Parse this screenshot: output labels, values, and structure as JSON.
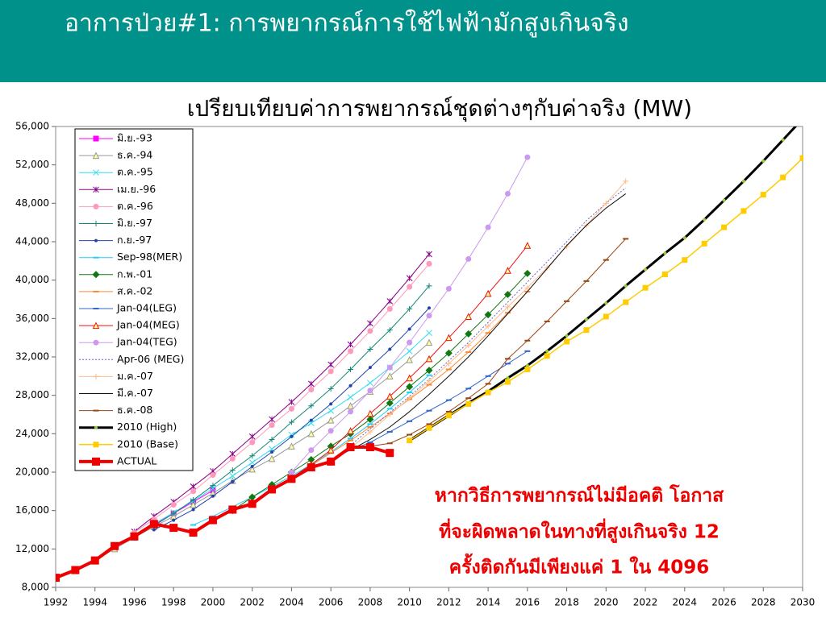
{
  "header": {
    "title": "อาการป่วย#1: การพยากรณ์การใช้ไฟฟ้ามักสูงเกินจริง"
  },
  "annotation": [
    "หากวิธีการพยากรณ์ไม่มีอคติ โอกาส",
    "ที่จะผิดพลาดในทางที่สูงเกินจริง 12",
    "ครั้งติดกันมีเพียงแค่ 1 ใน 4096"
  ],
  "chart_data": {
    "type": "line",
    "title": "เปรียบเทียบค่าการพยากรณ์ชุดต่างๆกับค่าจริง (MW)",
    "xlim": [
      1992,
      2030
    ],
    "xticks": [
      1992,
      1994,
      1996,
      1998,
      2000,
      2002,
      2004,
      2006,
      2008,
      2010,
      2012,
      2014,
      2016,
      2018,
      2020,
      2022,
      2024,
      2026,
      2028,
      2030
    ],
    "ylim": [
      8000,
      56000
    ],
    "yticks": [
      {
        "value": 8000,
        "label": "8,000"
      },
      {
        "value": 12000,
        "label": "12,000"
      },
      {
        "value": 16000,
        "label": "16,000"
      },
      {
        "value": 20000,
        "label": "20,000"
      },
      {
        "value": 24000,
        "label": "24,000"
      },
      {
        "value": 28000,
        "label": "28,000"
      },
      {
        "value": 32000,
        "label": "32,000"
      },
      {
        "value": 36000,
        "label": "36,000"
      },
      {
        "value": 40000,
        "label": "40,000"
      },
      {
        "value": 44000,
        "label": "44,000"
      },
      {
        "value": 48000,
        "label": "48,000"
      },
      {
        "value": 52000,
        "label": "52,000"
      },
      {
        "value": 56000,
        "label": "56,000"
      }
    ],
    "legend": "upper left",
    "series": [
      {
        "name": "มิ.ย.-93",
        "color": "#ff00ff",
        "marker": "square",
        "line_width": 1,
        "x": [
          1993,
          1994,
          1995,
          1996,
          1997,
          1998,
          1999,
          2000
        ],
        "values": [
          9900,
          10900,
          12100,
          13300,
          14500,
          15700,
          16900,
          18100
        ]
      },
      {
        "name": "ธ.ค.-94",
        "color": "#999999",
        "marker": "triangle",
        "line_width": 1,
        "x": [
          1994,
          1995,
          1996,
          1997,
          1998,
          1999,
          2000,
          2001,
          2002,
          2003,
          2004,
          2005,
          2006,
          2007,
          2008,
          2009,
          2010,
          2011
        ],
        "values": [
          10800,
          12000,
          13200,
          14300,
          15400,
          16600,
          17800,
          19100,
          20300,
          21400,
          22700,
          24000,
          25400,
          26900,
          28400,
          30000,
          31700,
          33500
        ]
      },
      {
        "name": "ต.ค.-95",
        "color": "#33ddee",
        "marker": "x",
        "line_width": 1,
        "x": [
          1995,
          1996,
          1997,
          1998,
          1999,
          2000,
          2001,
          2002,
          2003,
          2004,
          2005,
          2006,
          2007,
          2008,
          2009,
          2010,
          2011
        ],
        "values": [
          12200,
          13400,
          14600,
          15800,
          17000,
          18300,
          19600,
          21000,
          22400,
          23900,
          25100,
          26400,
          27800,
          29300,
          30900,
          32600,
          34500
        ]
      },
      {
        "name": "เม.ย.-96",
        "color": "#880088",
        "marker": "star",
        "line_width": 1,
        "x": [
          1996,
          1997,
          1998,
          1999,
          2000,
          2001,
          2002,
          2003,
          2004,
          2005,
          2006,
          2007,
          2008,
          2009,
          2010,
          2011
        ],
        "values": [
          13800,
          15400,
          16900,
          18500,
          20100,
          21900,
          23700,
          25500,
          27300,
          29200,
          31200,
          33300,
          35500,
          37800,
          40200,
          42700
        ]
      },
      {
        "name": "ต.ค.-96",
        "color": "#ff99bb",
        "marker": "circle",
        "line_width": 1,
        "x": [
          1996,
          1997,
          1998,
          1999,
          2000,
          2001,
          2002,
          2003,
          2004,
          2005,
          2006,
          2007,
          2008,
          2009,
          2010,
          2011
        ],
        "values": [
          13700,
          15100,
          16600,
          18000,
          19700,
          21400,
          23100,
          24900,
          26600,
          28600,
          30500,
          32600,
          34700,
          37000,
          39300,
          41700
        ]
      },
      {
        "name": "มิ.ย.-97",
        "color": "#118877",
        "marker": "plus",
        "line_width": 1,
        "x": [
          1997,
          1998,
          1999,
          2000,
          2001,
          2002,
          2003,
          2004,
          2005,
          2006,
          2007,
          2008,
          2009,
          2010,
          2011
        ],
        "values": [
          14400,
          15700,
          17100,
          18600,
          20200,
          21700,
          23400,
          25200,
          26900,
          28700,
          30700,
          32800,
          34800,
          37000,
          39400
        ]
      },
      {
        "name": "ก.ย.-97",
        "color": "#2244aa",
        "marker": "dot",
        "line_width": 1,
        "x": [
          1997,
          1998,
          1999,
          2000,
          2001,
          2002,
          2003,
          2004,
          2005,
          2006,
          2007,
          2008,
          2009,
          2010,
          2011
        ],
        "values": [
          14000,
          15000,
          16100,
          17500,
          19000,
          20600,
          22100,
          23700,
          25400,
          27100,
          29000,
          30900,
          32800,
          34900,
          37100
        ]
      },
      {
        "name": "Sep-98(MER)",
        "color": "#22ccff",
        "marker": "dash",
        "line_width": 1,
        "x": [
          1999,
          2000,
          2001,
          2002,
          2003,
          2004,
          2005,
          2006,
          2007,
          2008,
          2009,
          2010,
          2011
        ],
        "values": [
          14500,
          15400,
          16400,
          17400,
          18500,
          19600,
          20800,
          22100,
          23500,
          25000,
          26600,
          28300,
          30100
        ]
      },
      {
        "name": "ก.พ.-01",
        "color": "#117711",
        "marker": "diamond",
        "line_width": 1,
        "x": [
          2001,
          2002,
          2003,
          2004,
          2005,
          2006,
          2007,
          2008,
          2009,
          2010,
          2011,
          2012,
          2013,
          2014,
          2015,
          2016
        ],
        "values": [
          16000,
          17400,
          18700,
          20000,
          21300,
          22700,
          24000,
          25500,
          27200,
          28900,
          30600,
          32400,
          34400,
          36400,
          38500,
          40700
        ]
      },
      {
        "name": "ส.ค.-02",
        "color": "#ff8833",
        "marker": "dash",
        "line_width": 1,
        "x": [
          2002,
          2003,
          2004,
          2005,
          2006,
          2007,
          2008,
          2009,
          2010,
          2011,
          2012,
          2013,
          2014,
          2015,
          2016
        ],
        "values": [
          16800,
          18100,
          19400,
          20700,
          22000,
          23300,
          24700,
          26100,
          27600,
          29100,
          30700,
          32500,
          34500,
          36600,
          38800
        ]
      },
      {
        "name": "Jan-04(LEG)",
        "color": "#3366cc",
        "marker": "dash",
        "line_width": 1,
        "x": [
          2004,
          2005,
          2006,
          2007,
          2008,
          2009,
          2010,
          2011,
          2012,
          2013,
          2014,
          2015,
          2016
        ],
        "values": [
          19300,
          20300,
          21300,
          22300,
          23100,
          24200,
          25300,
          26400,
          27500,
          28700,
          30000,
          31300,
          32600
        ]
      },
      {
        "name": "Jan-04(MEG)",
        "color": "#ee1111",
        "marker": "triangle",
        "line_width": 1,
        "x": [
          2004,
          2005,
          2006,
          2007,
          2008,
          2009,
          2010,
          2011,
          2012,
          2013,
          2014,
          2015,
          2016
        ],
        "values": [
          19400,
          20800,
          22300,
          24300,
          26100,
          27900,
          29800,
          31800,
          34000,
          36200,
          38600,
          41000,
          43600
        ]
      },
      {
        "name": "Jan-04(TEG)",
        "color": "#cc99ee",
        "marker": "circle",
        "line_width": 1,
        "x": [
          2004,
          2005,
          2006,
          2007,
          2008,
          2009,
          2010,
          2011,
          2012,
          2013,
          2014,
          2015,
          2016
        ],
        "values": [
          20000,
          22300,
          24300,
          26300,
          28500,
          30900,
          33500,
          36300,
          39100,
          42200,
          45500,
          49000,
          52800
        ]
      },
      {
        "name": "Apr-06 (MEG)",
        "color": "#6666cc",
        "marker": "none",
        "line_style": "dotted",
        "line_width": 1,
        "x": [
          2006,
          2007,
          2008,
          2009,
          2010,
          2011,
          2012,
          2013,
          2014,
          2015,
          2016,
          2017,
          2018,
          2019,
          2020,
          2021
        ],
        "values": [
          21000,
          22800,
          24500,
          26200,
          27900,
          29700,
          31600,
          33500,
          35600,
          37700,
          39800,
          41900,
          44000,
          46200,
          48000,
          49600
        ]
      },
      {
        "name": "ม.ค.-07",
        "color": "#ffbb88",
        "marker": "plus",
        "line_width": 1,
        "x": [
          2007,
          2008,
          2009,
          2010,
          2011,
          2012,
          2013,
          2014,
          2015,
          2016,
          2017,
          2018,
          2019,
          2020,
          2021
        ],
        "values": [
          22500,
          24200,
          26000,
          27700,
          29500,
          31300,
          33200,
          35200,
          37200,
          39200,
          41300,
          43500,
          45700,
          48000,
          50300
        ]
      },
      {
        "name": "มี.ค.-07",
        "color": "#111111",
        "marker": "none",
        "line_width": 1,
        "x": [
          2007,
          2008,
          2009,
          2010,
          2011,
          2012,
          2013,
          2014,
          2015,
          2016,
          2017,
          2018,
          2019,
          2020,
          2021
        ],
        "values": [
          22300,
          23400,
          24700,
          26300,
          28100,
          30000,
          32000,
          34200,
          36500,
          38800,
          41200,
          43600,
          45700,
          47500,
          49000
        ]
      },
      {
        "name": "ธ.ค.-08",
        "color": "#994411",
        "marker": "dash",
        "line_width": 1,
        "x": [
          2008,
          2009,
          2010,
          2011,
          2012,
          2013,
          2014,
          2015,
          2016,
          2017,
          2018,
          2019,
          2020,
          2021
        ],
        "values": [
          22700,
          23000,
          23900,
          25000,
          26300,
          27700,
          29200,
          31800,
          33700,
          35700,
          37800,
          39900,
          42100,
          44300
        ]
      },
      {
        "name": "2010 (High)",
        "color": "#000000",
        "marker_color": "#99cc33",
        "marker": "dot",
        "line_width": 3,
        "x": [
          2010,
          2011,
          2012,
          2013,
          2014,
          2015,
          2016,
          2017,
          2018,
          2019,
          2020,
          2021,
          2022,
          2023,
          2024,
          2025,
          2026,
          2027,
          2028,
          2029,
          2030
        ],
        "values": [
          23300,
          24600,
          25900,
          27200,
          28400,
          29800,
          31100,
          32600,
          34200,
          35900,
          37600,
          39400,
          41100,
          42800,
          44400,
          46300,
          48300,
          50300,
          52400,
          54600,
          56800
        ]
      },
      {
        "name": "2010 (Base)",
        "color": "#ffcc00",
        "marker": "square",
        "line_width": 1.5,
        "x": [
          2010,
          2011,
          2012,
          2013,
          2014,
          2015,
          2016,
          2017,
          2018,
          2019,
          2020,
          2021,
          2022,
          2023,
          2024,
          2025,
          2026,
          2027,
          2028,
          2029,
          2030
        ],
        "values": [
          23300,
          24600,
          25900,
          27100,
          28300,
          29400,
          30700,
          32100,
          33600,
          34800,
          36200,
          37700,
          39200,
          40600,
          42100,
          43800,
          45500,
          47200,
          48900,
          50700,
          52700
        ]
      },
      {
        "name": "ACTUAL",
        "color": "#ee0000",
        "marker": "square",
        "line_width": 4,
        "x": [
          1992,
          1993,
          1994,
          1995,
          1996,
          1997,
          1998,
          1999,
          2000,
          2001,
          2002,
          2003,
          2004,
          2005,
          2006,
          2007,
          2008,
          2009
        ],
        "values": [
          9000,
          9800,
          10800,
          12300,
          13300,
          14600,
          14200,
          13700,
          15000,
          16100,
          16700,
          18200,
          19300,
          20500,
          21100,
          22600,
          22600,
          22000
        ]
      }
    ]
  }
}
